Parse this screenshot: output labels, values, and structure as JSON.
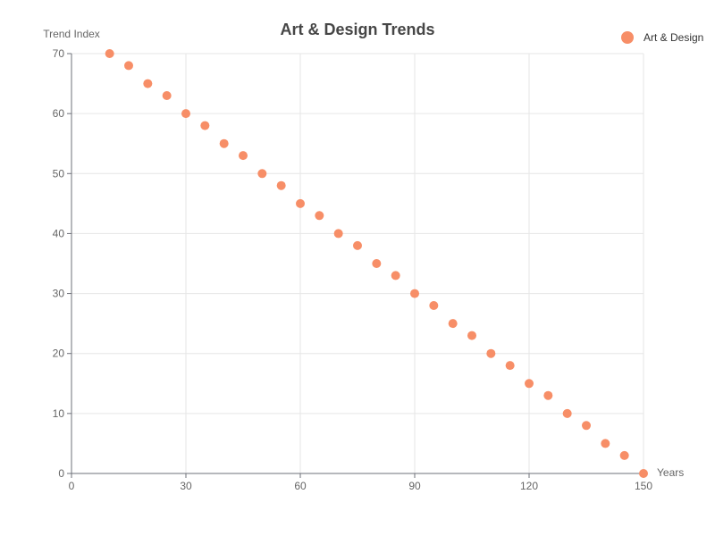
{
  "chart_data": {
    "type": "scatter",
    "title": "Art & Design Trends",
    "xlabel": "Years",
    "ylabel": "Trend Index",
    "xlim": [
      0,
      150
    ],
    "ylim": [
      0,
      70
    ],
    "xticks": [
      0,
      30,
      60,
      90,
      120,
      150
    ],
    "yticks": [
      0,
      10,
      20,
      30,
      40,
      50,
      60,
      70
    ],
    "grid": true,
    "legend_position": "top-right",
    "series": [
      {
        "name": "Art & Design",
        "color": "#f78e67",
        "x": [
          10,
          15,
          20,
          25,
          30,
          35,
          40,
          45,
          50,
          55,
          60,
          65,
          70,
          75,
          80,
          85,
          90,
          95,
          100,
          105,
          110,
          115,
          120,
          125,
          130,
          135,
          140,
          145,
          150
        ],
        "y": [
          70,
          68,
          65,
          63,
          60,
          58,
          55,
          53,
          50,
          48,
          45,
          43,
          40,
          38,
          35,
          33,
          30,
          28,
          25,
          23,
          20,
          18,
          15,
          13,
          10,
          8,
          5,
          3,
          0
        ]
      }
    ]
  }
}
